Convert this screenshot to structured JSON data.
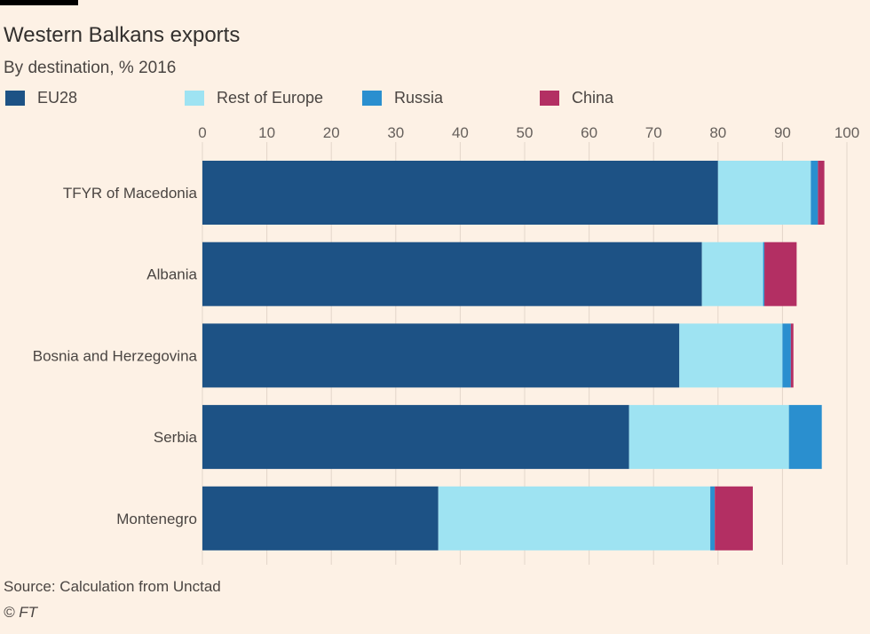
{
  "header": {
    "title": "Western Balkans exports",
    "subtitle": "By destination, % 2016"
  },
  "footer": {
    "source": "Source: Calculation from Unctad",
    "credit": "© FT"
  },
  "colors": {
    "EU28": "#1d5285",
    "Rest of Europe": "#9ee3f2",
    "Russia": "#2a8fcf",
    "China": "#b32f63",
    "gridline": "#e3d6ca",
    "tick_text": "#66605c",
    "label_text": "#4a4542"
  },
  "chart_data": {
    "type": "bar",
    "orientation": "horizontal",
    "stacked": true,
    "title": "Western Balkans exports",
    "subtitle": "By destination, % 2016",
    "xlabel": "",
    "ylabel": "",
    "xlim": [
      0,
      100
    ],
    "xticks": [
      0,
      10,
      20,
      30,
      40,
      50,
      60,
      70,
      80,
      90,
      100
    ],
    "grid": true,
    "legend_position": "top",
    "categories": [
      "TFYR of Macedonia",
      "Albania",
      "Bosnia and Herzegovina",
      "Serbia",
      "Montenegro"
    ],
    "series": [
      {
        "name": "EU28",
        "values": [
          80,
          77.5,
          74,
          66.2,
          36.6
        ]
      },
      {
        "name": "Rest of Europe",
        "values": [
          14.4,
          9.5,
          16,
          24.8,
          42.2
        ]
      },
      {
        "name": "Russia",
        "values": [
          1.1,
          0.2,
          1.3,
          5.1,
          0.7
        ]
      },
      {
        "name": "China",
        "values": [
          1,
          5,
          0.4,
          0,
          5.9
        ]
      }
    ]
  }
}
